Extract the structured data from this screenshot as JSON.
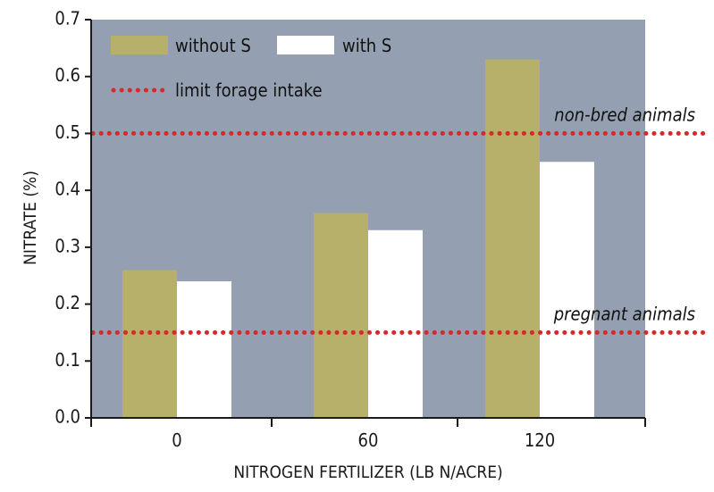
{
  "chart_data": {
    "type": "bar",
    "categories": [
      "0",
      "60",
      "120"
    ],
    "series": [
      {
        "name": "without S",
        "values": [
          0.26,
          0.36,
          0.63
        ],
        "color": "#b7b06a"
      },
      {
        "name": "with S",
        "values": [
          0.24,
          0.33,
          0.45
        ],
        "color": "#ffffff"
      }
    ],
    "xlabel": "NITROGEN FERTILIZER (LB N/ACRE)",
    "ylabel": "NITRATE (%)",
    "ylim": [
      0,
      0.7
    ],
    "yticks": [
      "0.0",
      "0.1",
      "0.2",
      "0.3",
      "0.4",
      "0.5",
      "0.6",
      "0.7"
    ],
    "reference_lines": [
      {
        "value": 0.5,
        "label": "non-bred animals"
      },
      {
        "value": 0.15,
        "label": "pregnant animals"
      }
    ],
    "reference_legend": "limit forage intake",
    "plot_background": "#94a0b1",
    "reference_color": "#d42a2a",
    "grid": false,
    "legend": "top-left"
  }
}
